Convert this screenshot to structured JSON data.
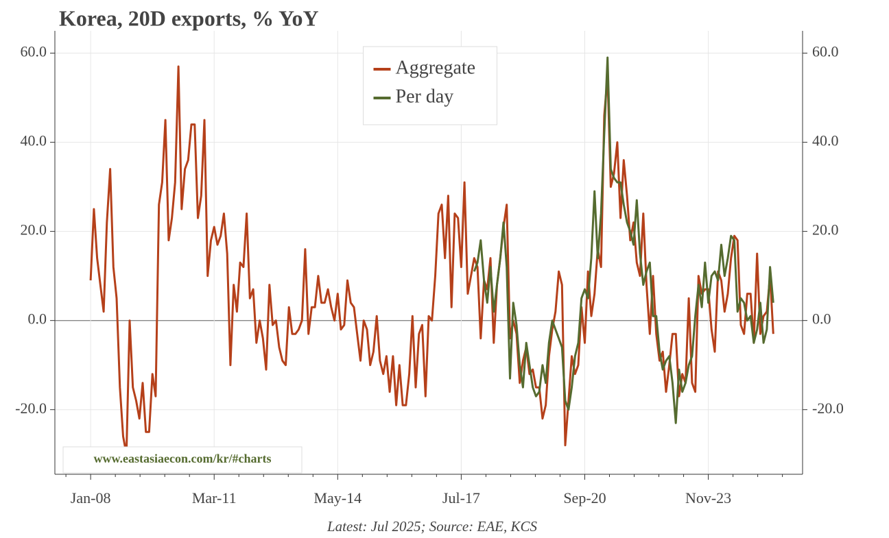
{
  "chart_data": {
    "type": "line",
    "title": "Korea, 20D exports, % YoY",
    "footer": "Latest: Jul 2025; Source: EAE, KCS",
    "watermark": "www.eastasiaecon.com/kr/#charts",
    "x": [
      "2008-01",
      "2008-02",
      "2008-03",
      "2008-04",
      "2008-05",
      "2008-06",
      "2008-07",
      "2008-08",
      "2008-09",
      "2008-10",
      "2008-11",
      "2008-12",
      "2009-01",
      "2009-02",
      "2009-03",
      "2009-04",
      "2009-05",
      "2009-06",
      "2009-07",
      "2009-08",
      "2009-09",
      "2009-10",
      "2009-11",
      "2009-12",
      "2010-01",
      "2010-02",
      "2010-03",
      "2010-04",
      "2010-05",
      "2010-06",
      "2010-07",
      "2010-08",
      "2010-09",
      "2010-10",
      "2010-11",
      "2010-12",
      "2011-01",
      "2011-02",
      "2011-03",
      "2011-04",
      "2011-05",
      "2011-06",
      "2011-07",
      "2011-08",
      "2011-09",
      "2011-10",
      "2011-11",
      "2011-12",
      "2012-01",
      "2012-02",
      "2012-03",
      "2012-04",
      "2012-05",
      "2012-06",
      "2012-07",
      "2012-08",
      "2012-09",
      "2012-10",
      "2012-11",
      "2012-12",
      "2013-01",
      "2013-02",
      "2013-03",
      "2013-04",
      "2013-05",
      "2013-06",
      "2013-07",
      "2013-08",
      "2013-09",
      "2013-10",
      "2013-11",
      "2013-12",
      "2014-01",
      "2014-02",
      "2014-03",
      "2014-04",
      "2014-05",
      "2014-06",
      "2014-07",
      "2014-08",
      "2014-09",
      "2014-10",
      "2014-11",
      "2014-12",
      "2015-01",
      "2015-02",
      "2015-03",
      "2015-04",
      "2015-05",
      "2015-06",
      "2015-07",
      "2015-08",
      "2015-09",
      "2015-10",
      "2015-11",
      "2015-12",
      "2016-01",
      "2016-02",
      "2016-03",
      "2016-04",
      "2016-05",
      "2016-06",
      "2016-07",
      "2016-08",
      "2016-09",
      "2016-10",
      "2016-11",
      "2016-12",
      "2017-01",
      "2017-02",
      "2017-03",
      "2017-04",
      "2017-05",
      "2017-06",
      "2017-07",
      "2017-08",
      "2017-09",
      "2017-10",
      "2017-11",
      "2017-12",
      "2018-01",
      "2018-02",
      "2018-03",
      "2018-04",
      "2018-05",
      "2018-06",
      "2018-07",
      "2018-08",
      "2018-09",
      "2018-10",
      "2018-11",
      "2018-12",
      "2019-01",
      "2019-02",
      "2019-03",
      "2019-04",
      "2019-05",
      "2019-06",
      "2019-07",
      "2019-08",
      "2019-09",
      "2019-10",
      "2019-11",
      "2019-12",
      "2020-01",
      "2020-02",
      "2020-03",
      "2020-04",
      "2020-05",
      "2020-06",
      "2020-07",
      "2020-08",
      "2020-09",
      "2020-10",
      "2020-11",
      "2020-12",
      "2021-01",
      "2021-02",
      "2021-03",
      "2021-04",
      "2021-05",
      "2021-06",
      "2021-07",
      "2021-08",
      "2021-09",
      "2021-10",
      "2021-11",
      "2021-12",
      "2022-01",
      "2022-02",
      "2022-03",
      "2022-04",
      "2022-05",
      "2022-06",
      "2022-07",
      "2022-08",
      "2022-09",
      "2022-10",
      "2022-11",
      "2022-12",
      "2023-01",
      "2023-02",
      "2023-03",
      "2023-04",
      "2023-05",
      "2023-06",
      "2023-07",
      "2023-08",
      "2023-09",
      "2023-10",
      "2023-11",
      "2023-12",
      "2024-01",
      "2024-02",
      "2024-03",
      "2024-04",
      "2024-05",
      "2024-06",
      "2024-07",
      "2024-08",
      "2024-09",
      "2024-10",
      "2024-11",
      "2024-12",
      "2025-01",
      "2025-02",
      "2025-03",
      "2025-04",
      "2025-05",
      "2025-06",
      "2025-07"
    ],
    "series": [
      {
        "name": "Aggregate",
        "color": "#b5401a",
        "values": [
          9,
          25,
          14,
          8,
          2,
          22,
          34,
          12,
          5,
          -15,
          -26,
          -30,
          0,
          -15,
          -18,
          -22,
          -14,
          -25,
          -25,
          -12,
          -17,
          26,
          31,
          45,
          18,
          23,
          31,
          57,
          25,
          34,
          36,
          44,
          44,
          23,
          28,
          45,
          10,
          18,
          21,
          17,
          19,
          24,
          15,
          -10,
          8,
          2,
          13,
          12,
          24,
          5,
          7,
          -5,
          0,
          -4,
          -11,
          8,
          -1,
          0,
          -6,
          -9,
          -10,
          3,
          -3,
          -3,
          -2,
          0,
          16,
          -3,
          3,
          3,
          10,
          4,
          4,
          7,
          3,
          0,
          6,
          -2,
          -1,
          9,
          4,
          3,
          -3,
          -9,
          0,
          -2,
          -10,
          -7,
          1,
          -9,
          -12,
          -8,
          -16,
          -8,
          -19,
          -10,
          -19,
          -19,
          -12,
          1,
          -15,
          -3,
          -1,
          -17,
          1,
          0,
          10,
          24,
          26,
          14,
          28,
          3,
          24,
          23,
          12,
          31,
          6,
          10,
          14,
          12,
          -4,
          9,
          7,
          14,
          -5,
          8,
          14,
          21,
          26,
          -4,
          0,
          -3,
          -14,
          -9,
          -6,
          -12,
          -11,
          -15,
          -15,
          -22,
          -19,
          -8,
          -2,
          2,
          11,
          8,
          -28,
          -18,
          -8,
          -12,
          -10,
          3,
          -5,
          11,
          1,
          6,
          16,
          12,
          46,
          55,
          30,
          33,
          40,
          23,
          36,
          28,
          18,
          22,
          13,
          10,
          24,
          8,
          -3,
          10,
          -3,
          -9,
          -7,
          -16,
          -10,
          -3,
          -3,
          -17,
          -12,
          -14,
          5,
          -14,
          -16,
          10,
          6,
          7,
          7,
          -2,
          -7,
          11,
          9,
          2,
          6,
          14,
          19,
          18,
          -1,
          -3,
          6,
          6,
          -5,
          15,
          -3,
          1,
          2,
          10,
          -3
        ]
      },
      {
        "name": "Per day",
        "color": "#556b2f",
        "values": [
          null,
          null,
          null,
          null,
          null,
          null,
          null,
          null,
          null,
          null,
          null,
          null,
          null,
          null,
          null,
          null,
          null,
          null,
          null,
          null,
          null,
          null,
          null,
          null,
          null,
          null,
          null,
          null,
          null,
          null,
          null,
          null,
          null,
          null,
          null,
          null,
          null,
          null,
          null,
          null,
          null,
          null,
          null,
          null,
          null,
          null,
          null,
          null,
          null,
          null,
          null,
          null,
          null,
          null,
          null,
          null,
          null,
          null,
          null,
          null,
          null,
          null,
          null,
          null,
          null,
          null,
          null,
          null,
          null,
          null,
          null,
          null,
          null,
          null,
          null,
          null,
          null,
          null,
          null,
          null,
          null,
          null,
          null,
          null,
          null,
          null,
          null,
          null,
          null,
          null,
          null,
          null,
          null,
          null,
          null,
          null,
          null,
          null,
          null,
          null,
          null,
          null,
          null,
          null,
          null,
          null,
          null,
          null,
          null,
          null,
          null,
          null,
          null,
          null,
          null,
          null,
          null,
          null,
          11,
          13,
          18,
          9,
          4,
          12,
          2,
          8,
          14,
          22,
          12,
          -13,
          4,
          -1,
          -10,
          -15,
          -5,
          -10,
          -15,
          -17,
          -16,
          -10,
          -14,
          -5,
          0,
          -2,
          -4,
          -6,
          -18,
          -20,
          -15,
          -8,
          -5,
          5,
          7,
          5,
          14,
          29,
          14,
          24,
          42,
          59,
          34,
          32,
          31,
          31,
          26,
          22,
          20,
          17,
          27,
          15,
          8,
          11,
          13,
          1,
          1,
          -7,
          -11,
          -9,
          -8,
          -14,
          -23,
          -11,
          -16,
          -14,
          -10,
          -8,
          1,
          8,
          3,
          13,
          4,
          10,
          11,
          9,
          17,
          10,
          14,
          19,
          18,
          2,
          5,
          4,
          0,
          1,
          -5,
          -2,
          4,
          -5,
          -2,
          12,
          4
        ]
      }
    ],
    "xlim": [
      "2007-02",
      "2026-04"
    ],
    "xticks": [
      {
        "value": "2008-01",
        "label": "Jan-08"
      },
      {
        "value": "2011-03",
        "label": "Mar-11"
      },
      {
        "value": "2014-05",
        "label": "May-14"
      },
      {
        "value": "2017-07",
        "label": "Jul-17"
      },
      {
        "value": "2020-09",
        "label": "Sep-20"
      },
      {
        "value": "2023-11",
        "label": "Nov-23"
      }
    ],
    "ylim": [
      -34.5,
      65
    ],
    "yticks": [
      {
        "value": -20,
        "label": "-20.0"
      },
      {
        "value": 0,
        "label": "0.0"
      },
      {
        "value": 20,
        "label": "20.0"
      },
      {
        "value": 40,
        "label": "40.0"
      },
      {
        "value": 60,
        "label": "60.0"
      }
    ],
    "y2lim": [
      -34.5,
      65
    ],
    "y2ticks": [
      {
        "value": -20,
        "label": "-20.0"
      },
      {
        "value": 0,
        "label": "0.0"
      },
      {
        "value": 20,
        "label": "20.0"
      },
      {
        "value": 40,
        "label": "40.0"
      },
      {
        "value": 60,
        "label": "60.0"
      }
    ],
    "grid": true,
    "legend": "upper center"
  }
}
